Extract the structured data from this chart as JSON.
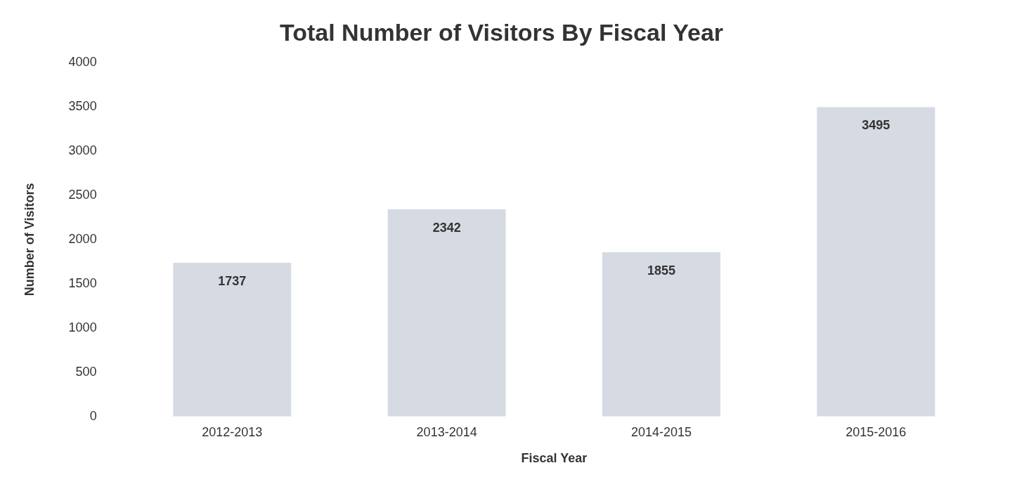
{
  "chart_data": {
    "type": "bar",
    "title": "Total Number of Visitors By Fiscal Year",
    "xlabel": "Fiscal Year",
    "ylabel": "Number of Visitors",
    "categories": [
      "2012-2013",
      "2013-2014",
      "2014-2015",
      "2015-2016"
    ],
    "values": [
      1737,
      2342,
      1855,
      3495
    ],
    "color": "#d6dae3",
    "ylim": [
      0,
      4000
    ],
    "yticks": [
      0,
      500,
      1000,
      1500,
      2000,
      2500,
      3000,
      3500,
      4000
    ],
    "grid": false,
    "legend": false,
    "data_labels": true
  }
}
